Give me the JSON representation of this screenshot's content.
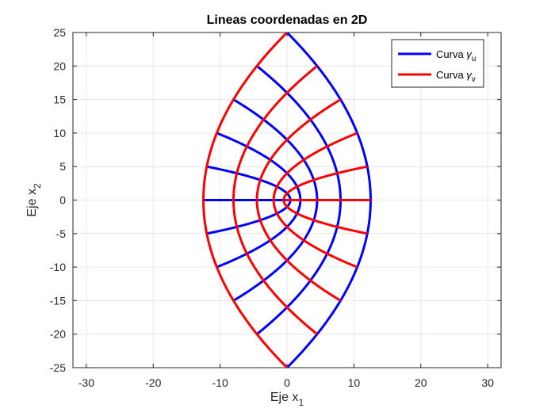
{
  "chart_data": {
    "type": "line",
    "title": "Lineas coordenadas en 2D",
    "xlabel": {
      "base": "Eje x",
      "sub": "1"
    },
    "ylabel": {
      "base": "Eje x",
      "sub": "2"
    },
    "xlim": [
      -32,
      32
    ],
    "ylim": [
      -25,
      25
    ],
    "xticks": [
      -30,
      -20,
      -10,
      0,
      10,
      20,
      30
    ],
    "yticks": [
      -25,
      -20,
      -15,
      -10,
      -5,
      0,
      5,
      10,
      15,
      20,
      25
    ],
    "grid": true,
    "legend_position": "top-right",
    "legend": [
      {
        "base": "Curva ",
        "greek": "γ",
        "sub": "u",
        "color": "#0000ff"
      },
      {
        "base": "Curva ",
        "greek": "γ",
        "sub": "v",
        "color": "#ff0000"
      }
    ],
    "series": [
      {
        "legend": "u",
        "color": "#0000ff",
        "description": "parabolic coordinate lines x1 = (u^2 - v^2)/2, x2 = u*v with u fixed",
        "fixed_values": [
          0,
          1,
          2,
          3,
          4,
          5
        ],
        "param_range": [
          -5,
          5
        ]
      },
      {
        "legend": "v",
        "color": "#ff0000",
        "description": "parabolic coordinate lines x1 = (u^2 - v^2)/2, x2 = u*v with v fixed",
        "fixed_values": [
          0,
          1,
          2,
          3,
          4,
          5
        ],
        "param_range": [
          -5,
          5
        ]
      }
    ]
  }
}
